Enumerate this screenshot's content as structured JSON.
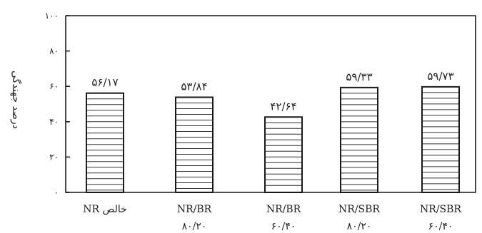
{
  "chart_data": {
    "type": "bar",
    "ylabel": "درصد جهندگی",
    "ylim": [
      0,
      100
    ],
    "yticks": [
      {
        "value": 0,
        "label": "۰"
      },
      {
        "value": 20,
        "label": "۲۰"
      },
      {
        "value": 40,
        "label": "۴۰"
      },
      {
        "value": 60,
        "label": "۶۰"
      },
      {
        "value": 80,
        "label": "۸۰"
      },
      {
        "value": 100,
        "label": "۱۰۰"
      }
    ],
    "categories": [
      {
        "line1": "NR خالص",
        "line2": ""
      },
      {
        "line1": "NR/BR",
        "line2": "۸۰/۲۰"
      },
      {
        "line1": "NR/BR",
        "line2": "۶۰/۴۰"
      },
      {
        "line1": "NR/SBR",
        "line2": "۸۰/۲۰"
      },
      {
        "line1": "NR/SBR",
        "line2": "۶۰/۴۰"
      }
    ],
    "values": [
      56.17,
      53.84,
      42.64,
      59.33,
      59.73
    ],
    "value_labels": [
      "۵۶/۱۷",
      "۵۳/۸۴",
      "۴۲/۶۴",
      "۵۹/۳۳",
      "۵۹/۷۳"
    ],
    "grid": false,
    "fill": "horizontal-hatch",
    "colors": {
      "ink": "#1a1a1a",
      "background": "#ffffff"
    }
  }
}
